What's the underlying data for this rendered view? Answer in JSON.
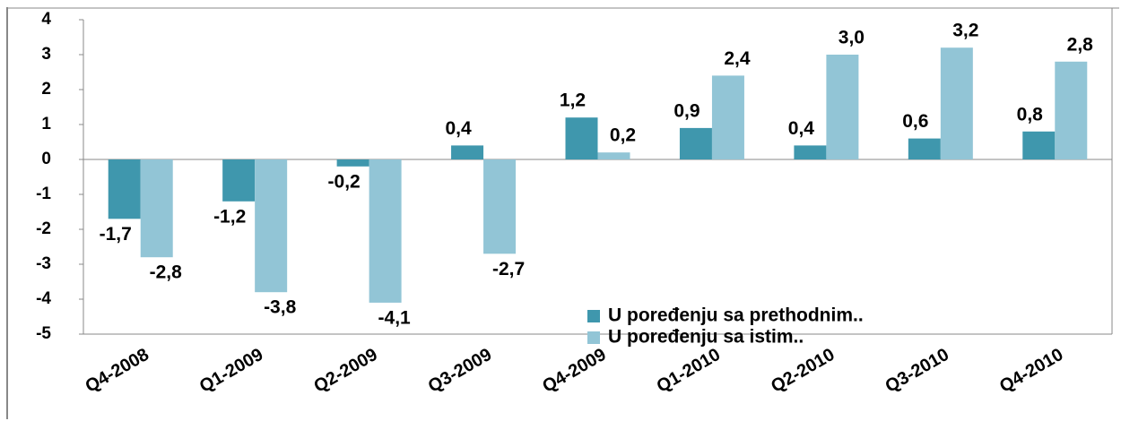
{
  "chart_data": {
    "type": "bar",
    "categories": [
      "Q4-2008",
      "Q1-2009",
      "Q2-2009",
      "Q3-2009",
      "Q4-2009",
      "Q1-2010",
      "Q2-2010",
      "Q3-2010",
      "Q4-2010"
    ],
    "series": [
      {
        "name": "U poređenju sa prethodnim..",
        "color": "#3f97ad",
        "values": [
          -1.7,
          -1.2,
          -0.2,
          0.4,
          1.2,
          0.9,
          0.4,
          0.6,
          0.8
        ],
        "value_labels": [
          "-1,7",
          "-1,2",
          "-0,2",
          "0,4",
          "1,2",
          "0,9",
          "0,4",
          "0,6",
          "0,8"
        ]
      },
      {
        "name": "U poređenju sa istim..",
        "color": "#92c5d6",
        "values": [
          -2.8,
          -3.8,
          -4.1,
          -2.7,
          0.2,
          2.4,
          3.0,
          3.2,
          2.8
        ],
        "value_labels": [
          "-2,8",
          "-3,8",
          "-4,1",
          "-2,7",
          "0,2",
          "2,4",
          "3,0",
          "3,2",
          "2,8"
        ]
      }
    ],
    "ylim": [
      -5,
      4
    ],
    "yticks": [
      -5,
      -4,
      -3,
      -2,
      -1,
      0,
      1,
      2,
      3,
      4
    ],
    "grid": false,
    "legend": "bottom-right"
  }
}
